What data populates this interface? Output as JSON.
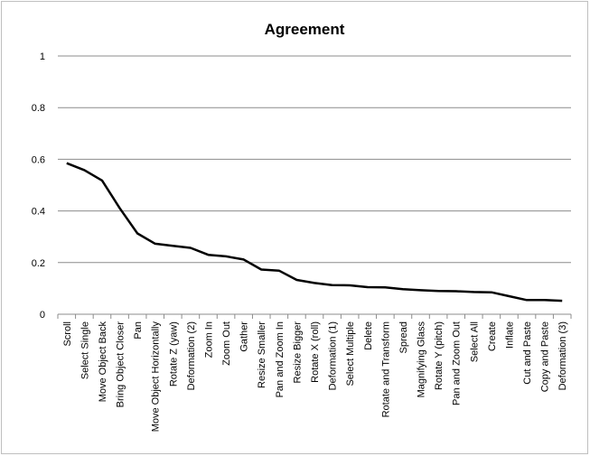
{
  "chart_data": {
    "type": "line",
    "title": "Agreement",
    "xlabel": "",
    "ylabel": "",
    "ylim": [
      0,
      1
    ],
    "yticks": [
      0,
      0.2,
      0.4,
      0.6,
      0.8,
      1
    ],
    "ytick_labels": [
      "0",
      "0.2",
      "0.4",
      "0.6",
      "0.8",
      "1"
    ],
    "grid": true,
    "legend": "none",
    "categories": [
      "Scroll",
      "Select Single",
      "Move Object Back",
      "Bring Object Closer",
      "Pan",
      "Move Object Horizontally",
      "Rotate Z (yaw)",
      "Deformation (2)",
      "Zoom In",
      "Zoom Out",
      "Gather",
      "Resize Smaller",
      "Pan and Zoom In",
      "Resize Bigger",
      "Rotate X (roll)",
      "Deformation (1)",
      "Select Multiple",
      "Delete",
      "Rotate and Transform",
      "Spread",
      "Magnifying Glass",
      "Rotate Y (pitch)",
      "Pan and Zoom Out",
      "Select All",
      "Create",
      "Inflate",
      "Cut and Paste",
      "Copy and Paste",
      "Deformation (3)"
    ],
    "series": [
      {
        "color": "#000000",
        "values": [
          0.585,
          0.558,
          0.518,
          0.41,
          0.313,
          0.273,
          0.265,
          0.257,
          0.23,
          0.224,
          0.212,
          0.173,
          0.169,
          0.133,
          0.121,
          0.113,
          0.112,
          0.105,
          0.104,
          0.097,
          0.093,
          0.09,
          0.089,
          0.086,
          0.085,
          0.07,
          0.055,
          0.055,
          0.052
        ]
      }
    ]
  }
}
